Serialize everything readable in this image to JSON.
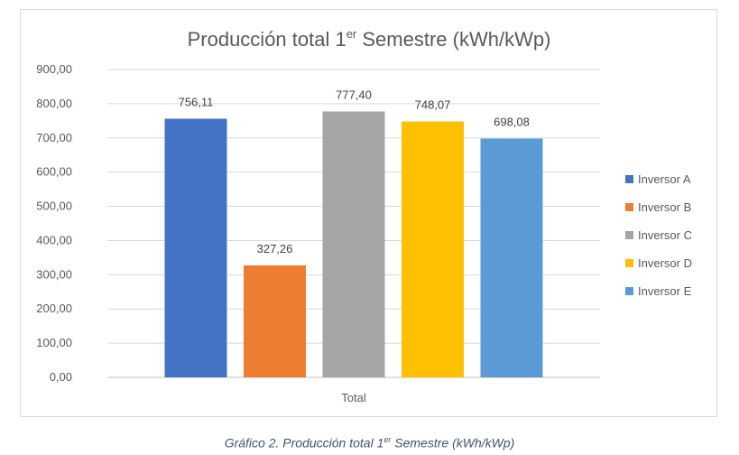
{
  "chart_data": {
    "type": "bar",
    "title": "Producción total 1",
    "title_sup": "er",
    "title_suffix": " Semestre (kWh/kWp)",
    "categories": [
      "Total"
    ],
    "series": [
      {
        "name": "Inversor A",
        "values": [
          756.11
        ],
        "label": "756,11",
        "color": "#4472c4"
      },
      {
        "name": "Inversor B",
        "values": [
          327.26
        ],
        "label": "327,26",
        "color": "#ed7d31"
      },
      {
        "name": "Inversor C",
        "values": [
          777.4
        ],
        "label": "777,40",
        "color": "#a5a5a5"
      },
      {
        "name": "Inversor D",
        "values": [
          748.07
        ],
        "label": "748,07",
        "color": "#ffc000"
      },
      {
        "name": "Inversor E",
        "values": [
          698.08
        ],
        "label": "698,08",
        "color": "#5b9bd5"
      }
    ],
    "ylim": [
      0,
      900
    ],
    "yticks": [
      0,
      100,
      200,
      300,
      400,
      500,
      600,
      700,
      800,
      900
    ],
    "ytick_labels": [
      "0,00",
      "100,00",
      "200,00",
      "300,00",
      "400,00",
      "500,00",
      "600,00",
      "700,00",
      "800,00",
      "900,00"
    ],
    "grid": true,
    "legend": "right",
    "xlabel": "",
    "ylabel": ""
  },
  "caption": {
    "prefix": "Gráfico 2. Producción total 1",
    "sup": "er",
    "suffix": " Semestre (kWh/kWp)"
  }
}
